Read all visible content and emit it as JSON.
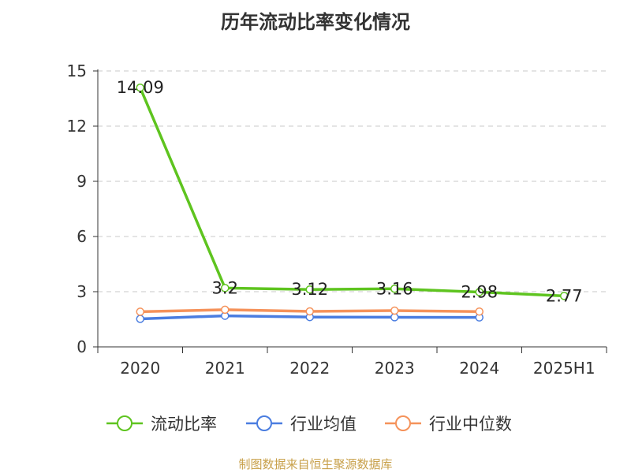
{
  "title": "历年流动比率变化情况",
  "source": "制图数据来自恒生聚源数据库",
  "chart_data": {
    "type": "line",
    "categories": [
      "2020",
      "2021",
      "2022",
      "2023",
      "2024",
      "2025H1"
    ],
    "ylim": [
      0,
      15
    ],
    "yticks": [
      0,
      3,
      6,
      9,
      12,
      15
    ],
    "grid": true,
    "legend_position": "bottom",
    "series": [
      {
        "name": "流动比率",
        "color": "#5ec41f",
        "values": [
          14.09,
          3.2,
          3.12,
          3.16,
          2.98,
          2.77
        ],
        "labels": [
          "14.09",
          "3.2",
          "3.12",
          "3.16",
          "2.98",
          "2.77"
        ]
      },
      {
        "name": "行业均值",
        "color": "#4a7de0",
        "values": [
          1.52,
          1.69,
          1.62,
          1.61,
          1.6,
          null
        ]
      },
      {
        "name": "行业中位数",
        "color": "#f5925a",
        "values": [
          1.91,
          2.02,
          1.93,
          1.97,
          1.92,
          null
        ]
      }
    ]
  }
}
